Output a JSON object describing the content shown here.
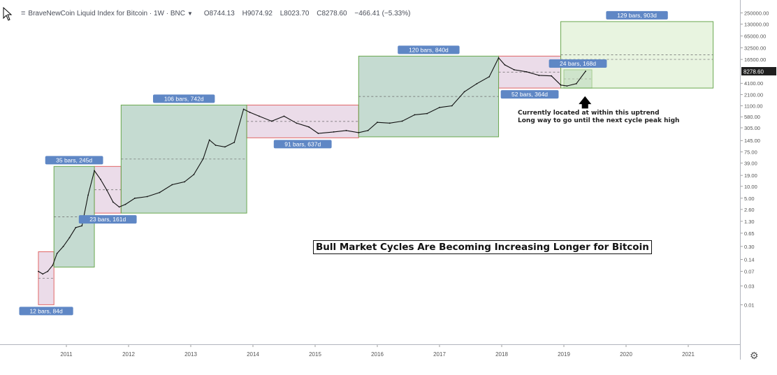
{
  "header": {
    "menu_icon": "hamburger-icon",
    "symbol": "BraveNewCoin Liquid Index for Bitcoin · 1W · BNC",
    "open": "O8744.13",
    "high": "H9074.92",
    "low": "L8023.70",
    "close": "C8278.60",
    "change": "−466.41 (−5.33%)"
  },
  "price_axis": {
    "labels": [
      "250000.00",
      "130000.00",
      "65000.00",
      "32500.00",
      "16500.00",
      "8278.60",
      "4100.00",
      "2100.00",
      "1100.00",
      "580.00",
      "305.00",
      "145.00",
      "75.00",
      "39.00",
      "19.00",
      "10.00",
      "5.00",
      "2.60",
      "1.30",
      "0.65",
      "0.30",
      "0.14",
      "0.07",
      "0.03",
      "0.01"
    ],
    "current_price": "8278.60",
    "scale": "log"
  },
  "time_axis": {
    "labels": [
      "2011",
      "2012",
      "2013",
      "2014",
      "2015",
      "2016",
      "2017",
      "2018",
      "2019",
      "2020",
      "2021"
    ]
  },
  "chart_data": {
    "type": "line",
    "title": "Bull Market Cycles Are Becoming Increasing Longer for Bitcoin",
    "yscale": "log",
    "x": [
      "2010.55",
      "2010.62",
      "2010.7",
      "2010.78",
      "2010.85",
      "2010.95",
      "2011.05",
      "2011.15",
      "2011.25",
      "2011.35",
      "2011.45",
      "2011.55",
      "2011.65",
      "2011.75",
      "2011.85",
      "2011.95",
      "2012.1",
      "2012.3",
      "2012.5",
      "2012.7",
      "2012.9",
      "2013.05",
      "2013.2",
      "2013.3",
      "2013.4",
      "2013.55",
      "2013.7",
      "2013.85",
      "2013.95",
      "2014.1",
      "2014.3",
      "2014.5",
      "2014.7",
      "2014.9",
      "2015.05",
      "2015.3",
      "2015.5",
      "2015.7",
      "2015.85",
      "2016.0",
      "2016.2",
      "2016.4",
      "2016.6",
      "2016.8",
      "2017.0",
      "2017.2",
      "2017.4",
      "2017.6",
      "2017.8",
      "2017.95",
      "2018.05",
      "2018.2",
      "2018.4",
      "2018.6",
      "2018.8",
      "2018.95",
      "2019.05",
      "2019.2",
      "2019.35"
    ],
    "values": [
      0.07,
      0.06,
      0.07,
      0.1,
      0.2,
      0.3,
      0.5,
      0.9,
      1.0,
      6,
      25,
      15,
      8,
      4,
      3,
      3.5,
      5,
      5.5,
      7,
      11,
      13,
      20,
      50,
      150,
      110,
      100,
      130,
      900,
      750,
      600,
      450,
      600,
      400,
      320,
      220,
      240,
      260,
      230,
      260,
      420,
      400,
      450,
      650,
      700,
      1000,
      1100,
      2500,
      4000,
      6000,
      18000,
      12000,
      9000,
      8000,
      6500,
      6300,
      3700,
      3500,
      4000,
      8278
    ],
    "bull_cycles": [
      {
        "label": "35 bars, 245d",
        "start": "2010.8",
        "end": "2011.45",
        "low": 0.09,
        "high": 32
      },
      {
        "label": "106 bars, 742d",
        "start": "2011.88",
        "end": "2013.9",
        "low": 2.1,
        "high": 1150
      },
      {
        "label": "120 bars, 840d",
        "start": "2015.7",
        "end": "2017.95",
        "low": 180,
        "high": 20000
      },
      {
        "label": "24 bars, 168d",
        "start": "2019.0",
        "end": "2019.45",
        "low": 3100,
        "high": 9000
      },
      {
        "label": "129 bars, 903d",
        "start": "2018.95",
        "end": "2021.4",
        "low": 3100,
        "high": 150000
      }
    ],
    "bear_cycles": [
      {
        "label": "12 bars, 84d",
        "start": "2010.55",
        "end": "2010.8",
        "low": 0.01,
        "high": 0.22
      },
      {
        "label": "23 bars, 161d",
        "start": "2011.45",
        "end": "2011.88",
        "low": 2.1,
        "high": 32
      },
      {
        "label": "91 bars, 637d",
        "start": "2013.9",
        "end": "2015.7",
        "low": 170,
        "high": 1150
      },
      {
        "label": "52 bars, 364d",
        "start": "2017.95",
        "end": "2018.95",
        "low": 3100,
        "high": 20000
      }
    ],
    "colors": {
      "bull_fill": "#2e7d5b",
      "bear_fill": "#c79bc0",
      "future_fill": "#d6ebc7",
      "box_label": "#5f87c5",
      "bull_border": "#6aa84f",
      "bear_border": "#e06666"
    }
  },
  "annotation": {
    "line1": "Currently located at within this uptrend",
    "line2": "Long way to go until the next cycle peak high"
  },
  "icons": [
    "cursor-icon",
    "hamburger-icon",
    "chevron-down-icon",
    "settings-gear-icon",
    "up-arrow-icon"
  ]
}
